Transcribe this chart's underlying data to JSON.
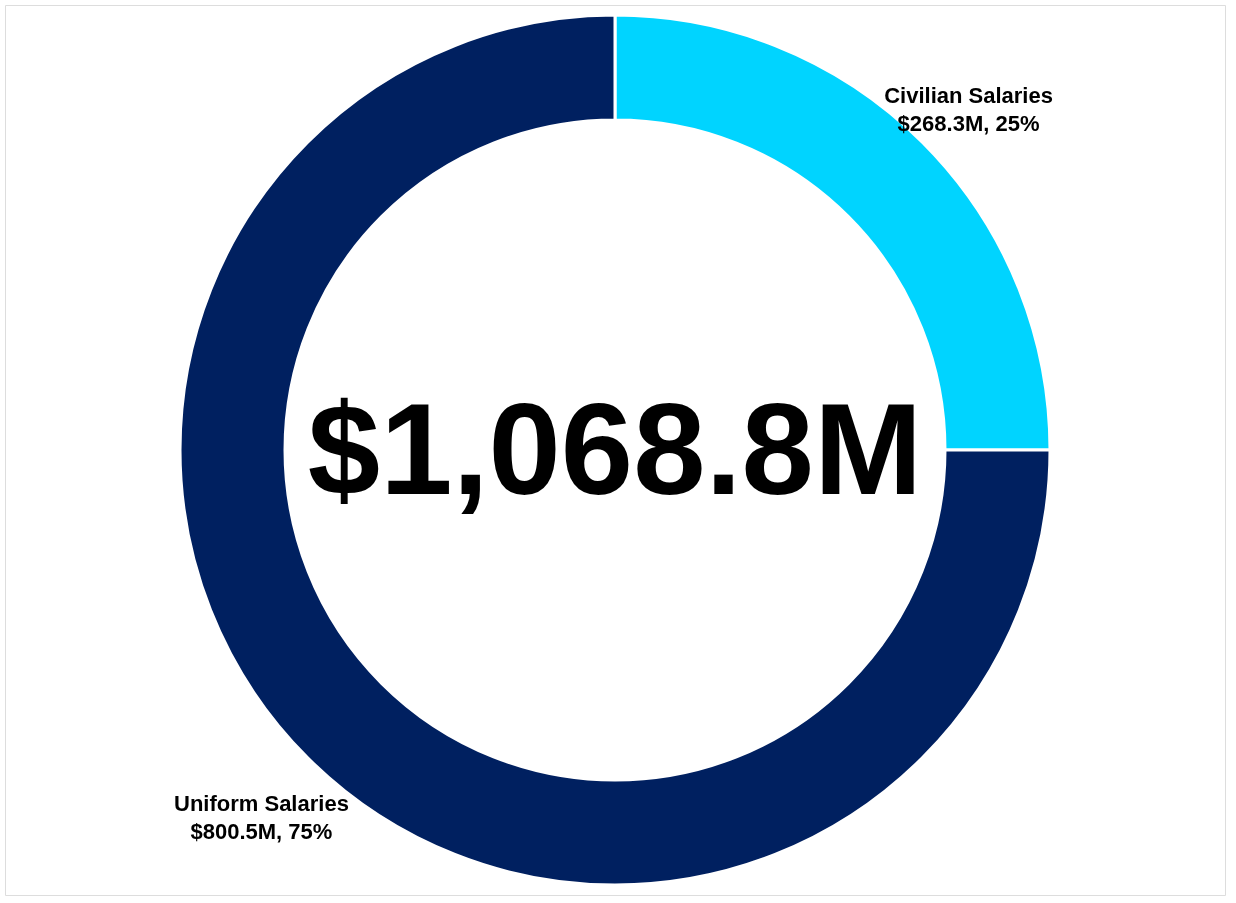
{
  "chart_data": {
    "type": "donut",
    "categories": [
      "Civilian Salaries",
      "Uniform Salaries"
    ],
    "values": [
      25,
      75
    ],
    "colors": [
      "#00d4ff",
      "#002060"
    ],
    "value_labels": [
      "$268.3M, 25%",
      "$800.5M, 75%"
    ],
    "annotations": [
      "$1,068.8M"
    ],
    "legend": false
  }
}
